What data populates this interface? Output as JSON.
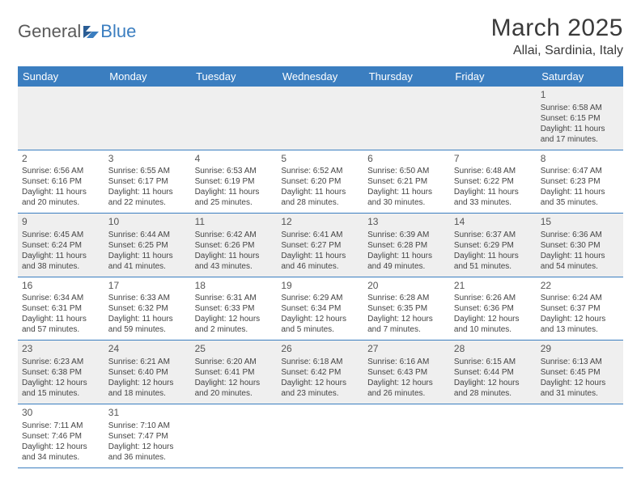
{
  "logo": {
    "text1": "General",
    "text2": "Blue"
  },
  "title": "March 2025",
  "location": "Allai, Sardinia, Italy",
  "colors": {
    "header_bg": "#3b7ec0",
    "header_text": "#ffffff",
    "gray_row": "#efefef",
    "white_row": "#ffffff",
    "line": "#3b7ec0",
    "logo_gray": "#5a5a5a",
    "logo_blue": "#3b7ec0"
  },
  "dayHeaders": [
    "Sunday",
    "Monday",
    "Tuesday",
    "Wednesday",
    "Thursday",
    "Friday",
    "Saturday"
  ],
  "weeks": [
    [
      null,
      null,
      null,
      null,
      null,
      null,
      {
        "n": "1",
        "sr": "6:58 AM",
        "ss": "6:15 PM",
        "dl": "11 hours and 17 minutes."
      }
    ],
    [
      {
        "n": "2",
        "sr": "6:56 AM",
        "ss": "6:16 PM",
        "dl": "11 hours and 20 minutes."
      },
      {
        "n": "3",
        "sr": "6:55 AM",
        "ss": "6:17 PM",
        "dl": "11 hours and 22 minutes."
      },
      {
        "n": "4",
        "sr": "6:53 AM",
        "ss": "6:19 PM",
        "dl": "11 hours and 25 minutes."
      },
      {
        "n": "5",
        "sr": "6:52 AM",
        "ss": "6:20 PM",
        "dl": "11 hours and 28 minutes."
      },
      {
        "n": "6",
        "sr": "6:50 AM",
        "ss": "6:21 PM",
        "dl": "11 hours and 30 minutes."
      },
      {
        "n": "7",
        "sr": "6:48 AM",
        "ss": "6:22 PM",
        "dl": "11 hours and 33 minutes."
      },
      {
        "n": "8",
        "sr": "6:47 AM",
        "ss": "6:23 PM",
        "dl": "11 hours and 35 minutes."
      }
    ],
    [
      {
        "n": "9",
        "sr": "6:45 AM",
        "ss": "6:24 PM",
        "dl": "11 hours and 38 minutes."
      },
      {
        "n": "10",
        "sr": "6:44 AM",
        "ss": "6:25 PM",
        "dl": "11 hours and 41 minutes."
      },
      {
        "n": "11",
        "sr": "6:42 AM",
        "ss": "6:26 PM",
        "dl": "11 hours and 43 minutes."
      },
      {
        "n": "12",
        "sr": "6:41 AM",
        "ss": "6:27 PM",
        "dl": "11 hours and 46 minutes."
      },
      {
        "n": "13",
        "sr": "6:39 AM",
        "ss": "6:28 PM",
        "dl": "11 hours and 49 minutes."
      },
      {
        "n": "14",
        "sr": "6:37 AM",
        "ss": "6:29 PM",
        "dl": "11 hours and 51 minutes."
      },
      {
        "n": "15",
        "sr": "6:36 AM",
        "ss": "6:30 PM",
        "dl": "11 hours and 54 minutes."
      }
    ],
    [
      {
        "n": "16",
        "sr": "6:34 AM",
        "ss": "6:31 PM",
        "dl": "11 hours and 57 minutes."
      },
      {
        "n": "17",
        "sr": "6:33 AM",
        "ss": "6:32 PM",
        "dl": "11 hours and 59 minutes."
      },
      {
        "n": "18",
        "sr": "6:31 AM",
        "ss": "6:33 PM",
        "dl": "12 hours and 2 minutes."
      },
      {
        "n": "19",
        "sr": "6:29 AM",
        "ss": "6:34 PM",
        "dl": "12 hours and 5 minutes."
      },
      {
        "n": "20",
        "sr": "6:28 AM",
        "ss": "6:35 PM",
        "dl": "12 hours and 7 minutes."
      },
      {
        "n": "21",
        "sr": "6:26 AM",
        "ss": "6:36 PM",
        "dl": "12 hours and 10 minutes."
      },
      {
        "n": "22",
        "sr": "6:24 AM",
        "ss": "6:37 PM",
        "dl": "12 hours and 13 minutes."
      }
    ],
    [
      {
        "n": "23",
        "sr": "6:23 AM",
        "ss": "6:38 PM",
        "dl": "12 hours and 15 minutes."
      },
      {
        "n": "24",
        "sr": "6:21 AM",
        "ss": "6:40 PM",
        "dl": "12 hours and 18 minutes."
      },
      {
        "n": "25",
        "sr": "6:20 AM",
        "ss": "6:41 PM",
        "dl": "12 hours and 20 minutes."
      },
      {
        "n": "26",
        "sr": "6:18 AM",
        "ss": "6:42 PM",
        "dl": "12 hours and 23 minutes."
      },
      {
        "n": "27",
        "sr": "6:16 AM",
        "ss": "6:43 PM",
        "dl": "12 hours and 26 minutes."
      },
      {
        "n": "28",
        "sr": "6:15 AM",
        "ss": "6:44 PM",
        "dl": "12 hours and 28 minutes."
      },
      {
        "n": "29",
        "sr": "6:13 AM",
        "ss": "6:45 PM",
        "dl": "12 hours and 31 minutes."
      }
    ],
    [
      {
        "n": "30",
        "sr": "7:11 AM",
        "ss": "7:46 PM",
        "dl": "12 hours and 34 minutes."
      },
      {
        "n": "31",
        "sr": "7:10 AM",
        "ss": "7:47 PM",
        "dl": "12 hours and 36 minutes."
      },
      null,
      null,
      null,
      null,
      null
    ]
  ],
  "labels": {
    "sunrise": "Sunrise:",
    "sunset": "Sunset:",
    "daylight": "Daylight:"
  }
}
